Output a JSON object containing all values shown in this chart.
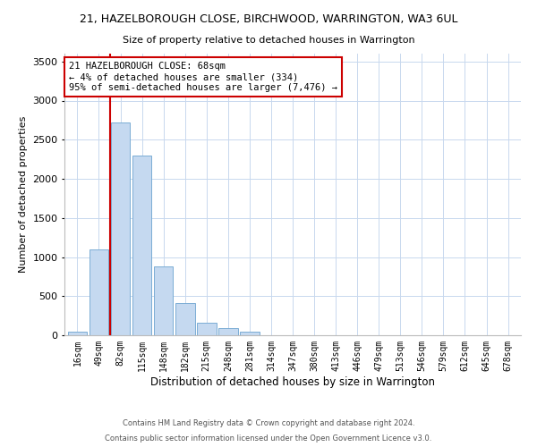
{
  "title": "21, HAZELBOROUGH CLOSE, BIRCHWOOD, WARRINGTON, WA3 6UL",
  "subtitle": "Size of property relative to detached houses in Warrington",
  "xlabel": "Distribution of detached houses by size in Warrington",
  "ylabel": "Number of detached properties",
  "bar_color": "#c5d9f0",
  "bar_edge_color": "#7badd4",
  "background_color": "#ffffff",
  "grid_color": "#c8d8ee",
  "annotation_box_text": "21 HAZELBOROUGH CLOSE: 68sqm\n← 4% of detached houses are smaller (334)\n95% of semi-detached houses are larger (7,476) →",
  "annotation_box_color": "#cc0000",
  "vline_color": "#cc0000",
  "vline_pos": 1.5,
  "categories": [
    "16sqm",
    "49sqm",
    "82sqm",
    "115sqm",
    "148sqm",
    "182sqm",
    "215sqm",
    "248sqm",
    "281sqm",
    "314sqm",
    "347sqm",
    "380sqm",
    "413sqm",
    "446sqm",
    "479sqm",
    "513sqm",
    "546sqm",
    "579sqm",
    "612sqm",
    "645sqm",
    "678sqm"
  ],
  "values": [
    50,
    1100,
    2720,
    2300,
    880,
    410,
    160,
    90,
    50,
    0,
    0,
    0,
    0,
    0,
    0,
    0,
    0,
    0,
    0,
    0,
    0
  ],
  "ylim": [
    0,
    3600
  ],
  "yticks": [
    0,
    500,
    1000,
    1500,
    2000,
    2500,
    3000,
    3500
  ],
  "footnote1": "Contains HM Land Registry data © Crown copyright and database right 2024.",
  "footnote2": "Contains public sector information licensed under the Open Government Licence v3.0."
}
